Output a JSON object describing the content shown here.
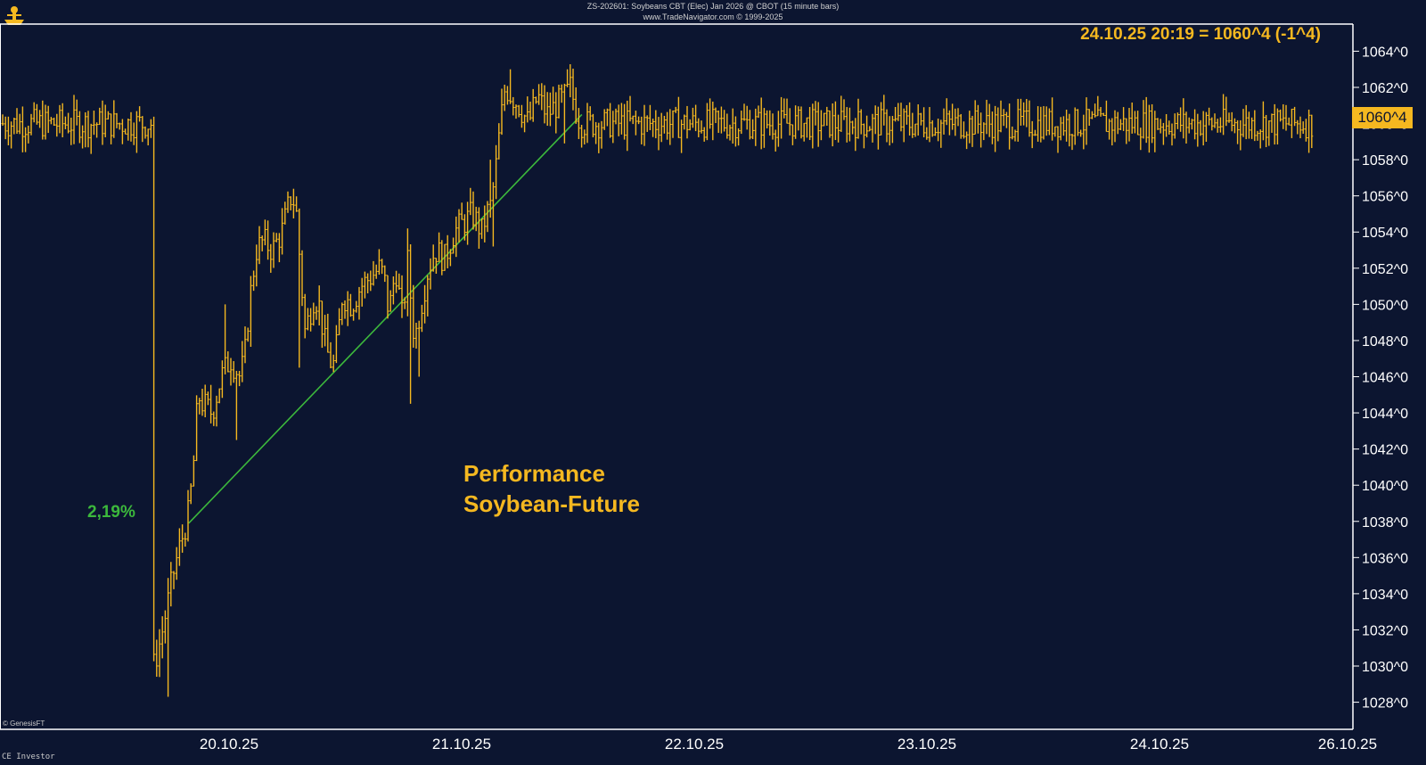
{
  "header": {
    "title": "ZS-202601: Soybeans CBT (Elec) Jan 2026 @ CBOT (15 minute bars)",
    "subtitle": "www.TradeNavigator.com © 1999-2025"
  },
  "readout": "24.10.25 20:19 = 1060^4 (-1^4)",
  "annotation": {
    "line1": "Performance",
    "line2": "Soybean-Future"
  },
  "trend_label": "2,19%",
  "last_price_label": "1060^4",
  "credit": "© GenesisFT",
  "footer": "CE Investor",
  "colors": {
    "background": "#0c1530",
    "bars": "#f5b820",
    "trendline": "#3cb83c",
    "axis": "#ffffff"
  },
  "chart_data": {
    "type": "ohlc",
    "instrument": "Soybeans CBT (Elec) Jan 2026",
    "y_ticks": [
      "1028^0",
      "1030^0",
      "1032^0",
      "1034^0",
      "1036^0",
      "1038^0",
      "1040^0",
      "1042^0",
      "1044^0",
      "1046^0",
      "1048^0",
      "1050^0",
      "1052^0",
      "1054^0",
      "1056^0",
      "1058^0",
      "1060^0",
      "1062^0",
      "1064^0"
    ],
    "ylim": [
      1026.5,
      1065.5
    ],
    "x_ticks": [
      "20.10.25",
      "21.10.25",
      "22.10.25",
      "23.10.25",
      "24.10.25",
      "26.10.25"
    ],
    "price_path": [
      [
        0,
        1029.5
      ],
      [
        0.04,
        1031.5
      ],
      [
        0.07,
        1033.5
      ],
      [
        0.1,
        1035.5
      ],
      [
        0.13,
        1037.0
      ],
      [
        0.16,
        1038.5
      ],
      [
        0.18,
        1041.0
      ],
      [
        0.2,
        1045.0
      ],
      [
        0.22,
        1044.5
      ],
      [
        0.26,
        1044.0
      ],
      [
        0.3,
        1046.0
      ],
      [
        0.34,
        1047.0
      ],
      [
        0.38,
        1046.0
      ],
      [
        0.4,
        1047.0
      ],
      [
        0.42,
        1050.0
      ],
      [
        0.45,
        1053.0
      ],
      [
        0.48,
        1053.5
      ],
      [
        0.52,
        1053.0
      ],
      [
        0.56,
        1054.0
      ],
      [
        0.6,
        1056.0
      ],
      [
        0.62,
        1055.5
      ],
      [
        0.64,
        1052.0
      ],
      [
        0.66,
        1048.5
      ],
      [
        0.7,
        1050.5
      ],
      [
        0.72,
        1050.0
      ],
      [
        0.75,
        1047.5
      ],
      [
        0.78,
        1046.5
      ],
      [
        0.8,
        1048.0
      ],
      [
        0.82,
        1050.5
      ],
      [
        0.86,
        1050.0
      ],
      [
        0.9,
        1051.0
      ],
      [
        0.94,
        1051.5
      ],
      [
        0.98,
        1052.0
      ],
      [
        1.0,
        1051.5
      ],
      [
        1.02,
        1049.5
      ],
      [
        1.05,
        1052.0
      ],
      [
        1.08,
        1049.0
      ],
      [
        1.1,
        1052.5
      ],
      [
        1.13,
        1048.0
      ],
      [
        1.16,
        1050.0
      ],
      [
        1.19,
        1052.0
      ],
      [
        1.22,
        1053.0
      ],
      [
        1.26,
        1052.5
      ],
      [
        1.3,
        1054.0
      ],
      [
        1.34,
        1054.5
      ],
      [
        1.38,
        1055.0
      ],
      [
        1.42,
        1054.0
      ],
      [
        1.44,
        1055.0
      ],
      [
        1.46,
        1055.5
      ],
      [
        1.48,
        1057.5
      ],
      [
        1.5,
        1060.0
      ],
      [
        1.52,
        1062.0
      ],
      [
        1.55,
        1061.5
      ],
      [
        1.58,
        1061.0
      ],
      [
        1.62,
        1060.0
      ],
      [
        1.66,
        1061.5
      ],
      [
        1.7,
        1060.5
      ],
      [
        1.74,
        1061.0
      ],
      [
        1.78,
        1061.5
      ],
      [
        1.8,
        1062.0
      ],
      [
        1.83,
        1060.5
      ],
      [
        1.85,
        1060.0
      ]
    ],
    "spikes": [
      {
        "x": 0.07,
        "low": 1028.3
      },
      {
        "x": 0.32,
        "high": 1050.0
      },
      {
        "x": 0.36,
        "low": 1042.5
      },
      {
        "x": 0.64,
        "low": 1046.5
      },
      {
        "x": 1.1,
        "high": 1054.2
      },
      {
        "x": 1.115,
        "low": 1044.5
      },
      {
        "x": 1.145,
        "low": 1046.0
      },
      {
        "x": 1.46,
        "high": 1058.0
      },
      {
        "x": 1.47,
        "low": 1053.2
      },
      {
        "x": 1.54,
        "high": 1063.0
      },
      {
        "x": 1.79,
        "high": 1063.0
      },
      {
        "x": 1.77,
        "low": 1058.9
      }
    ],
    "trendline": {
      "start": {
        "x": 0.16,
        "y": 1037.9
      },
      "end": {
        "x": 1.85,
        "y": 1060.5
      },
      "label": "2,19%"
    },
    "last_price": 1060.5
  }
}
